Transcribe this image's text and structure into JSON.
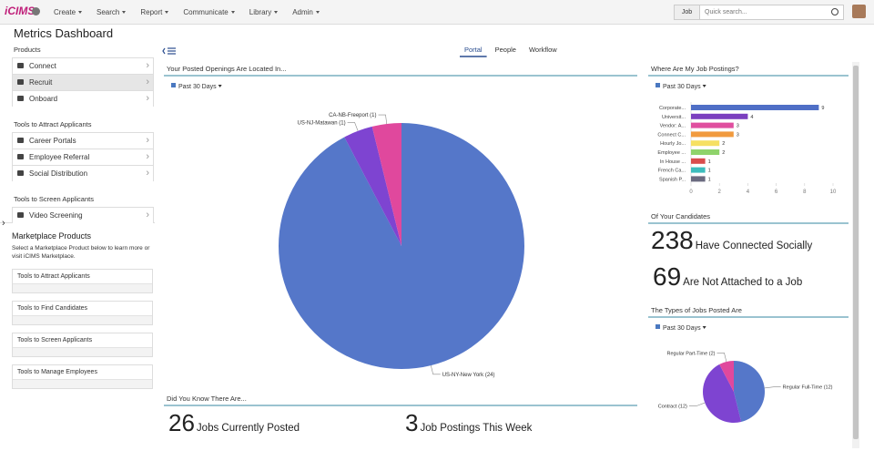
{
  "nav": {
    "brand": "iCIMS",
    "menu": [
      "Create",
      "Search",
      "Report",
      "Communicate",
      "Library",
      "Admin"
    ],
    "search_scope": "Job",
    "search_placeholder": "Quick search..."
  },
  "sidebar": {
    "title": "Metrics Dashboard",
    "sections": [
      {
        "heading": "Products",
        "items": [
          "Connect",
          "Recruit",
          "Onboard"
        ]
      },
      {
        "heading": "Tools to Attract Applicants",
        "items": [
          "Career Portals",
          "Employee Referral",
          "Social Distribution"
        ]
      },
      {
        "heading": "Tools to Screen Applicants",
        "items": [
          "Video Screening"
        ]
      }
    ],
    "marketplace": {
      "title": "Marketplace Products",
      "description": "Select a Marketplace Product below to learn more or visit iCIMS Marketplace.",
      "items": [
        "Tools to Attract Applicants",
        "Tools to Find Candidates",
        "Tools to Screen Applicants",
        "Tools to Manage Employees"
      ]
    }
  },
  "tabs": [
    "Portal",
    "People",
    "Workflow"
  ],
  "openings": {
    "title": "Your Posted Openings Are Located In...",
    "filter": "Past 30 Days",
    "chart": {
      "type": "pie",
      "categories": [
        "US-NY-New York",
        "US-NJ-Matawan",
        "CA-NB-Freeport"
      ],
      "values": [
        24,
        1,
        1
      ],
      "value_labels": [
        "(24)",
        "(1)",
        "(1)"
      ],
      "colors": [
        "#5577c9",
        "#7e44d1",
        "#e0489d"
      ]
    }
  },
  "postings": {
    "title": "Where Are My Job Postings?",
    "filter": "Past 30 Days",
    "chart": {
      "type": "hbar",
      "categories": [
        "Corporate...",
        "Universit...",
        "Vendor: A...",
        "Connect C...",
        "Hourly Jo...",
        "Employee ...",
        "In House ...",
        "French Ca...",
        "Spanish P..."
      ],
      "values": [
        9,
        4,
        3,
        3,
        2,
        2,
        1,
        1,
        1
      ],
      "colors": [
        "#4f6fc6",
        "#7b3fbf",
        "#e04f9f",
        "#f19a3e",
        "#f6e063",
        "#8fd36b",
        "#d94d4d",
        "#3dbdbd",
        "#6b6b80"
      ],
      "xlim": [
        0,
        10
      ],
      "xticks": [
        0,
        2,
        4,
        6,
        8,
        10
      ]
    }
  },
  "candidates": {
    "title": "Of Your Candidates",
    "stats": [
      {
        "value": 238,
        "label": "Have Connected Socially"
      },
      {
        "value": 69,
        "label": "Are Not Attached to a Job"
      }
    ]
  },
  "types": {
    "title": "The Types of Jobs Posted Are",
    "filter": "Past 30 Days",
    "chart": {
      "type": "pie",
      "categories": [
        "Regular Full-Time",
        "Contract",
        "Regular Part-Time"
      ],
      "values": [
        12,
        12,
        2
      ],
      "value_labels": [
        "(12)",
        "(12)",
        "(2)"
      ],
      "colors": [
        "#5577c9",
        "#7e44d1",
        "#e0489d"
      ]
    }
  },
  "did_you_know": {
    "title": "Did You Know There Are...",
    "stats": [
      {
        "value": 26,
        "label": "Jobs Currently Posted"
      },
      {
        "value": 3,
        "label": "Job Postings This Week"
      }
    ]
  }
}
